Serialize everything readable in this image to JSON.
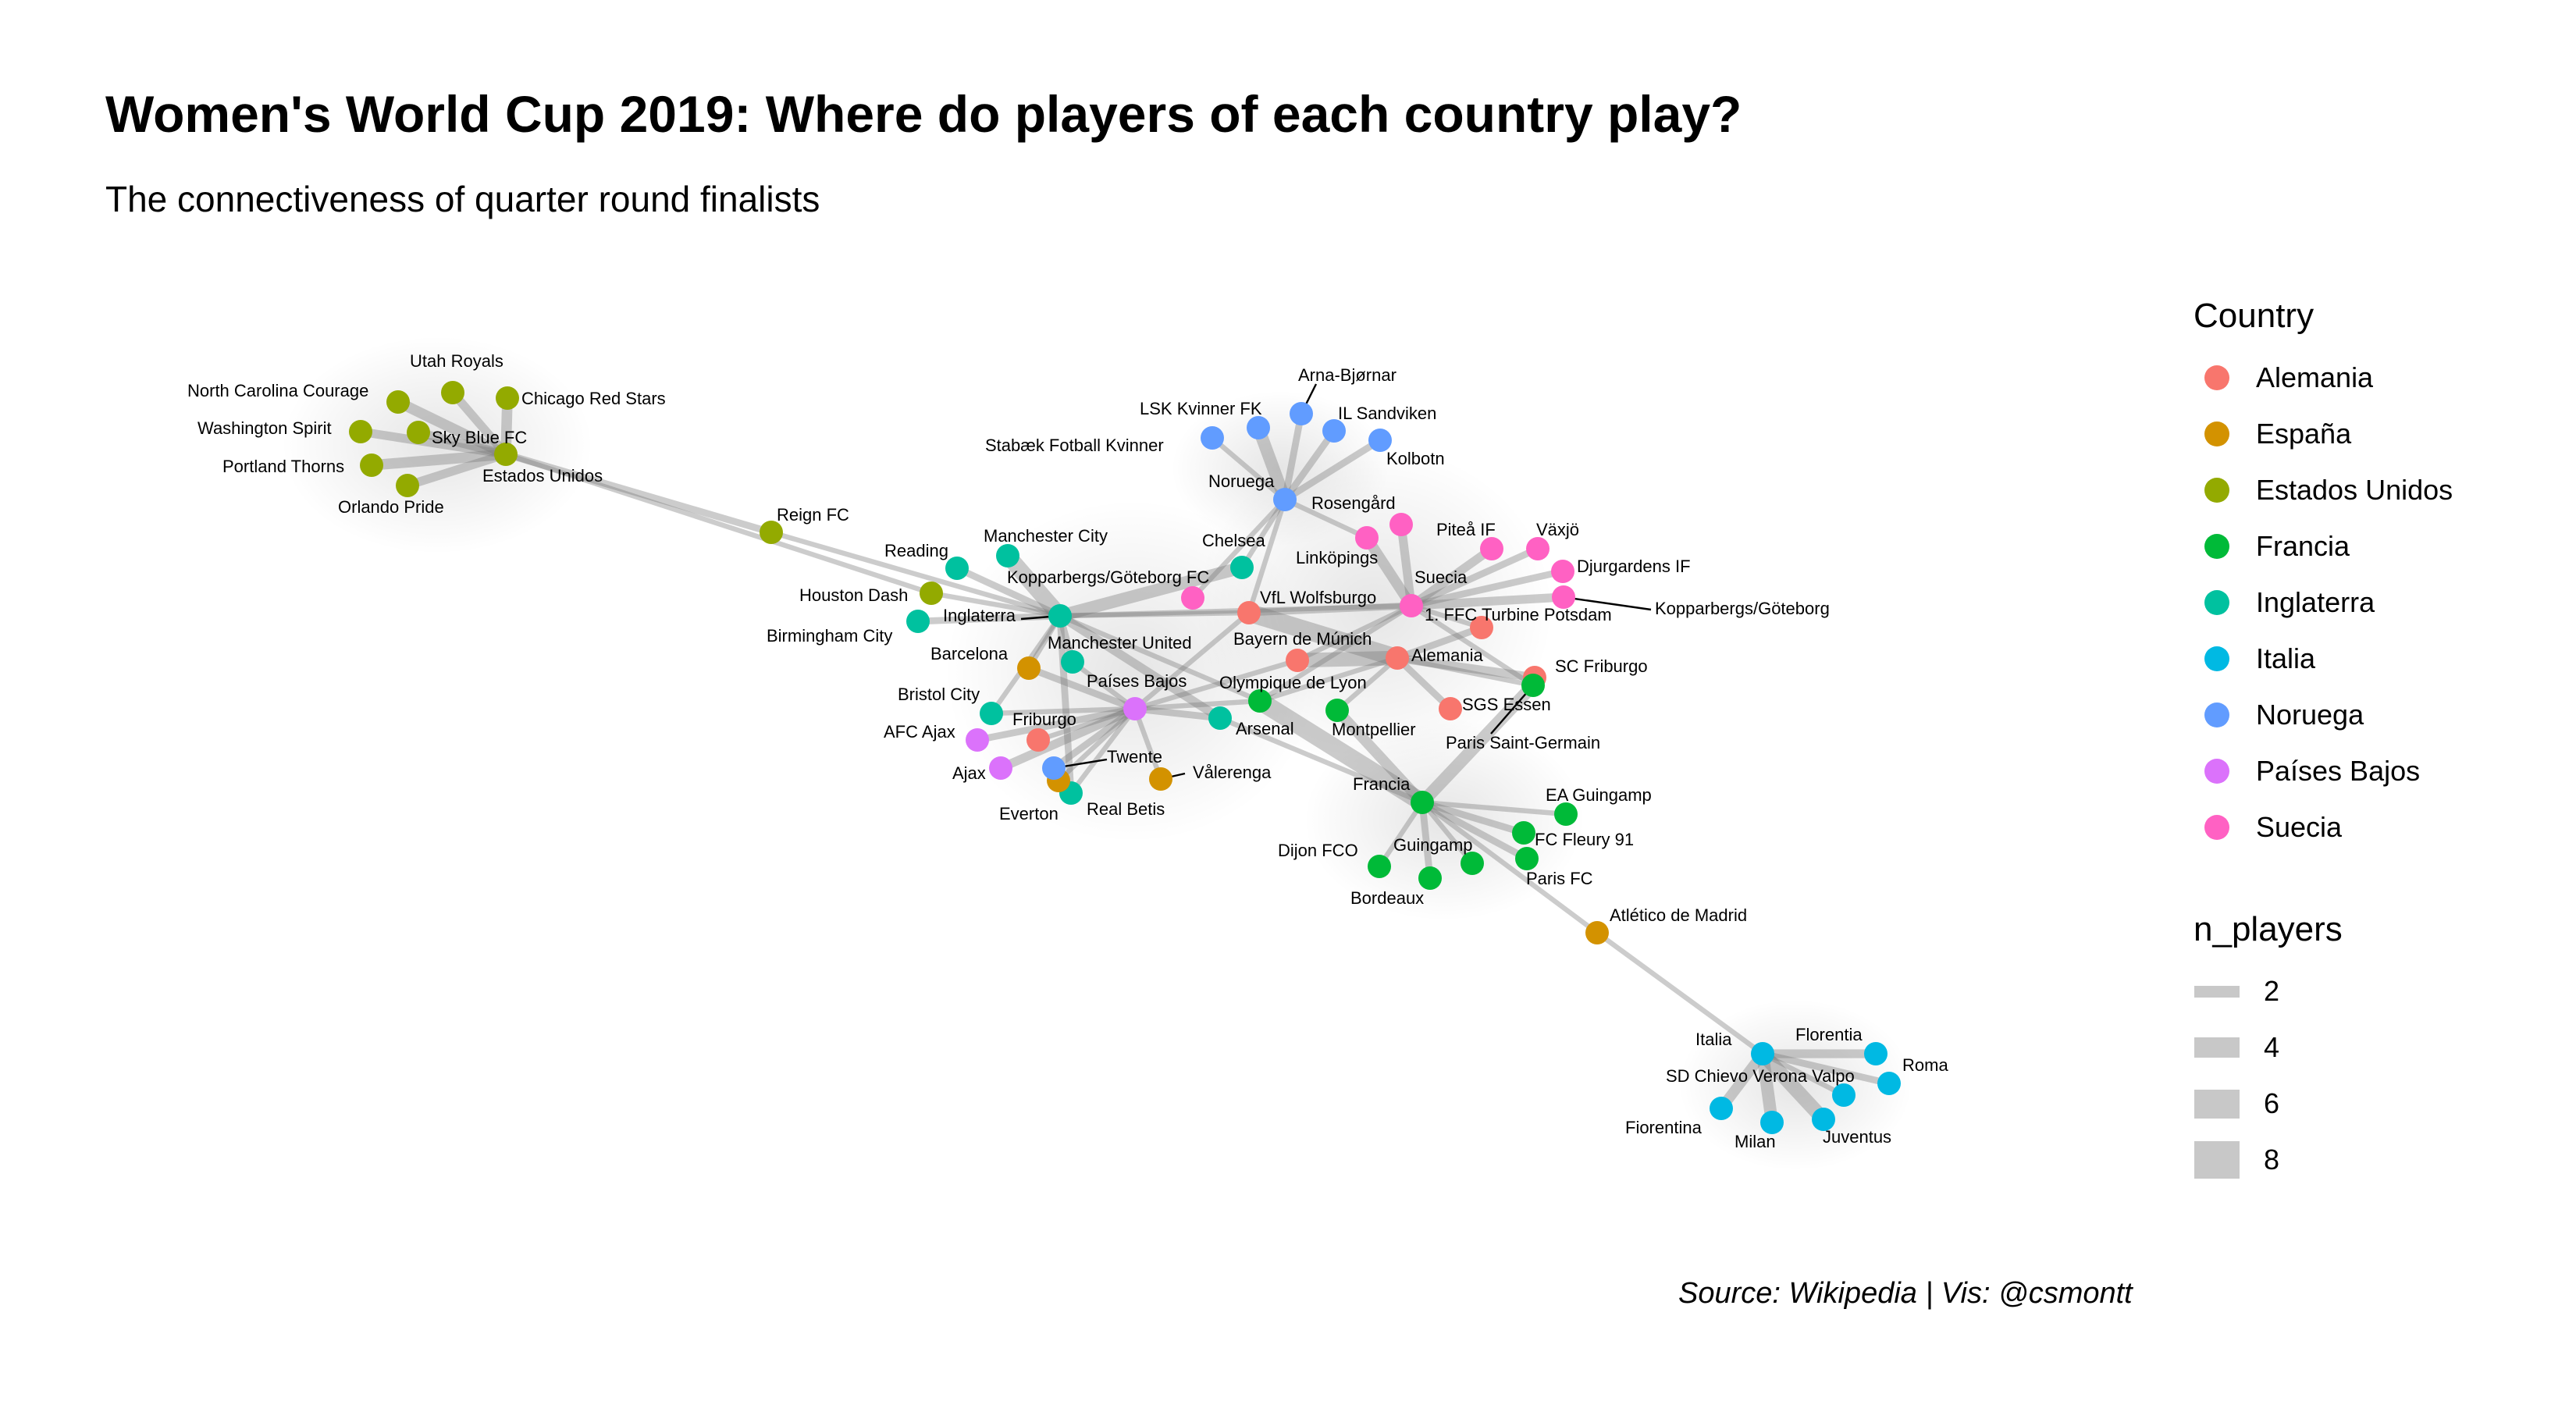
{
  "title": "Women's World Cup 2019: Where do players of each country play?",
  "subtitle": "The connectiveness of quarter round finalists",
  "caption": "Source: Wikipedia | Vis: @csmontt",
  "legend": {
    "color_title": "Country",
    "countries": [
      {
        "name": "Alemania",
        "color": "#F8766D"
      },
      {
        "name": "España",
        "color": "#D39200"
      },
      {
        "name": "Estados Unidos",
        "color": "#93AA00"
      },
      {
        "name": "Francia",
        "color": "#00BA38"
      },
      {
        "name": "Inglaterra",
        "color": "#00C19F"
      },
      {
        "name": "Italia",
        "color": "#00B9E3"
      },
      {
        "name": "Noruega",
        "color": "#619CFF"
      },
      {
        "name": "Países Bajos",
        "color": "#DB72FB"
      },
      {
        "name": "Suecia",
        "color": "#FF61C3"
      }
    ],
    "size_title": "n_players",
    "sizes": [
      {
        "label": "2",
        "value": 2
      },
      {
        "label": "4",
        "value": 4
      },
      {
        "label": "6",
        "value": 6
      },
      {
        "label": "8",
        "value": 8
      }
    ]
  },
  "graph": {
    "nodes": [
      {
        "id": "estados_unidos",
        "label": "Estados Unidos",
        "country": "Estados Unidos"
      },
      {
        "id": "utah_royals",
        "label": "Utah Royals",
        "country": "Estados Unidos"
      },
      {
        "id": "north_carolina_courage",
        "label": "North Carolina Courage",
        "country": "Estados Unidos"
      },
      {
        "id": "chicago_red_stars",
        "label": "Chicago Red Stars",
        "country": "Estados Unidos"
      },
      {
        "id": "washington_spirit",
        "label": "Washington Spirit",
        "country": "Estados Unidos"
      },
      {
        "id": "sky_blue_fc",
        "label": "Sky Blue FC",
        "country": "Estados Unidos"
      },
      {
        "id": "portland_thorns",
        "label": "Portland Thorns",
        "country": "Estados Unidos"
      },
      {
        "id": "orlando_pride",
        "label": "Orlando Pride",
        "country": "Estados Unidos"
      },
      {
        "id": "reign_fc",
        "label": "Reign FC",
        "country": "Estados Unidos"
      },
      {
        "id": "houston_dash",
        "label": "Houston Dash",
        "country": "Estados Unidos"
      },
      {
        "id": "inglaterra",
        "label": "Inglaterra",
        "country": "Inglaterra"
      },
      {
        "id": "reading",
        "label": "Reading",
        "country": "Inglaterra"
      },
      {
        "id": "manchester_city",
        "label": "Manchester City",
        "country": "Inglaterra"
      },
      {
        "id": "birmingham_city",
        "label": "Birmingham City",
        "country": "Inglaterra"
      },
      {
        "id": "chelsea",
        "label": "Chelsea",
        "country": "Inglaterra"
      },
      {
        "id": "manchester_united",
        "label": "Manchester United",
        "country": "Inglaterra"
      },
      {
        "id": "bristol_city",
        "label": "Bristol City",
        "country": "Inglaterra"
      },
      {
        "id": "arsenal",
        "label": "Arsenal",
        "country": "Inglaterra"
      },
      {
        "id": "everton",
        "label": "Everton",
        "country": "Inglaterra"
      },
      {
        "id": "barcelona",
        "label": "Barcelona",
        "country": "España"
      },
      {
        "id": "valerenga",
        "label": "Vålerenga",
        "country": "España"
      },
      {
        "id": "real_betis",
        "label": "Real Betis",
        "country": "España"
      },
      {
        "id": "atletico_madrid",
        "label": "Atlético de Madrid",
        "country": "España"
      },
      {
        "id": "paises_bajos",
        "label": "Países Bajos",
        "country": "Países Bajos"
      },
      {
        "id": "afc_ajax",
        "label": "AFC Ajax",
        "country": "Países Bajos"
      },
      {
        "id": "ajax",
        "label": "Ajax",
        "country": "Países Bajos"
      },
      {
        "id": "twente",
        "label": "Twente",
        "country": "Noruega"
      },
      {
        "id": "friburgo",
        "label": "Friburgo",
        "country": "Alemania"
      },
      {
        "id": "noruega",
        "label": "Noruega",
        "country": "Noruega"
      },
      {
        "id": "arna_bjornar",
        "label": "Arna-Bjørnar",
        "country": "Noruega"
      },
      {
        "id": "lsk_kvinner",
        "label": "LSK Kvinner FK",
        "country": "Noruega"
      },
      {
        "id": "il_sandviken",
        "label": "IL Sandviken",
        "country": "Noruega"
      },
      {
        "id": "stabaek",
        "label": "Stabæk Fotball Kvinner",
        "country": "Noruega"
      },
      {
        "id": "kolbotn",
        "label": "Kolbotn",
        "country": "Noruega"
      },
      {
        "id": "suecia",
        "label": "Suecia",
        "country": "Suecia"
      },
      {
        "id": "rosengard",
        "label": "Rosengård",
        "country": "Suecia"
      },
      {
        "id": "linkopings",
        "label": "Linköpings",
        "country": "Suecia"
      },
      {
        "id": "pitea_if",
        "label": "Piteå IF",
        "country": "Suecia"
      },
      {
        "id": "vaxjo",
        "label": "Växjö",
        "country": "Suecia"
      },
      {
        "id": "djurgardens",
        "label": "Djurgardens IF",
        "country": "Suecia"
      },
      {
        "id": "kopparbergs_goteborg",
        "label": "Kopparbergs/Göteborg",
        "country": "Suecia"
      },
      {
        "id": "kopparbergs_goteborg_fc",
        "label": "Kopparbergs/Göteborg FC",
        "country": "Suecia"
      },
      {
        "id": "alemania",
        "label": "Alemania",
        "country": "Alemania"
      },
      {
        "id": "vfl_wolfsburg",
        "label": "VfL Wolfsburgo",
        "country": "Alemania"
      },
      {
        "id": "bayern_munich",
        "label": "Bayern de Múnich",
        "country": "Alemania"
      },
      {
        "id": "turbine_potsdam",
        "label": "1. FFC Turbine Potsdam",
        "country": "Alemania"
      },
      {
        "id": "sc_friburgo",
        "label": "SC Friburgo",
        "country": "Alemania"
      },
      {
        "id": "sgs_essen",
        "label": "SGS Essen",
        "country": "Alemania"
      },
      {
        "id": "francia",
        "label": "Francia",
        "country": "Francia"
      },
      {
        "id": "olympique_lyon",
        "label": "Olympique de Lyon",
        "country": "Francia"
      },
      {
        "id": "montpellier",
        "label": "Montpellier",
        "country": "Francia"
      },
      {
        "id": "paris_saint_germain",
        "label": "Paris Saint-Germain",
        "country": "Francia"
      },
      {
        "id": "ea_guingamp",
        "label": "EA Guingamp",
        "country": "Francia"
      },
      {
        "id": "fc_fleury",
        "label": "FC Fleury 91",
        "country": "Francia"
      },
      {
        "id": "paris_fc",
        "label": "Paris FC",
        "country": "Francia"
      },
      {
        "id": "dijon_fco",
        "label": "Dijon FCO",
        "country": "Francia"
      },
      {
        "id": "guingamp",
        "label": "Guingamp",
        "country": "Francia"
      },
      {
        "id": "bordeaux",
        "label": "Bordeaux",
        "country": "Francia"
      },
      {
        "id": "italia",
        "label": "Italia",
        "country": "Italia"
      },
      {
        "id": "florentia",
        "label": "Florentia",
        "country": "Italia"
      },
      {
        "id": "roma",
        "label": "Roma",
        "country": "Italia"
      },
      {
        "id": "sd_chievo",
        "label": "SD Chievo Verona Valpo",
        "country": "Italia"
      },
      {
        "id": "fiorentina",
        "label": "Fiorentina",
        "country": "Italia"
      },
      {
        "id": "milan",
        "label": "Milan",
        "country": "Italia"
      },
      {
        "id": "juventus",
        "label": "Juventus",
        "country": "Italia"
      }
    ],
    "edges": [
      {
        "from": "estados_unidos",
        "to": "utah_royals",
        "n_players": 3
      },
      {
        "from": "estados_unidos",
        "to": "north_carolina_courage",
        "n_players": 4
      },
      {
        "from": "estados_unidos",
        "to": "chicago_red_stars",
        "n_players": 4
      },
      {
        "from": "estados_unidos",
        "to": "washington_spirit",
        "n_players": 3
      },
      {
        "from": "estados_unidos",
        "to": "sky_blue_fc",
        "n_players": 3
      },
      {
        "from": "estados_unidos",
        "to": "portland_thorns",
        "n_players": 4
      },
      {
        "from": "estados_unidos",
        "to": "orlando_pride",
        "n_players": 3
      },
      {
        "from": "estados_unidos",
        "to": "reign_fc",
        "n_players": 2
      },
      {
        "from": "reign_fc",
        "to": "inglaterra",
        "n_players": 1
      },
      {
        "from": "estados_unidos",
        "to": "houston_dash",
        "n_players": 1
      },
      {
        "from": "inglaterra",
        "to": "houston_dash",
        "n_players": 1
      },
      {
        "from": "inglaterra",
        "to": "reading",
        "n_players": 2
      },
      {
        "from": "inglaterra",
        "to": "manchester_city",
        "n_players": 7
      },
      {
        "from": "inglaterra",
        "to": "birmingham_city",
        "n_players": 2
      },
      {
        "from": "inglaterra",
        "to": "chelsea",
        "n_players": 5
      },
      {
        "from": "inglaterra",
        "to": "manchester_united",
        "n_players": 2
      },
      {
        "from": "inglaterra",
        "to": "bristol_city",
        "n_players": 1
      },
      {
        "from": "inglaterra",
        "to": "arsenal",
        "n_players": 3
      },
      {
        "from": "inglaterra",
        "to": "everton",
        "n_players": 2
      },
      {
        "from": "inglaterra",
        "to": "barcelona",
        "n_players": 1
      },
      {
        "from": "inglaterra",
        "to": "vfl_wolfsburg",
        "n_players": 1
      },
      {
        "from": "inglaterra",
        "to": "olympique_lyon",
        "n_players": 1
      },
      {
        "from": "paises_bajos",
        "to": "afc_ajax",
        "n_players": 2
      },
      {
        "from": "paises_bajos",
        "to": "ajax",
        "n_players": 3
      },
      {
        "from": "paises_bajos",
        "to": "twente",
        "n_players": 2
      },
      {
        "from": "paises_bajos",
        "to": "friburgo",
        "n_players": 1
      },
      {
        "from": "paises_bajos",
        "to": "barcelona",
        "n_players": 2
      },
      {
        "from": "paises_bajos",
        "to": "arsenal",
        "n_players": 2
      },
      {
        "from": "paises_bajos",
        "to": "bristol_city",
        "n_players": 1
      },
      {
        "from": "paises_bajos",
        "to": "everton",
        "n_players": 1
      },
      {
        "from": "paises_bajos",
        "to": "valerenga",
        "n_players": 1
      },
      {
        "from": "paises_bajos",
        "to": "real_betis",
        "n_players": 1
      },
      {
        "from": "paises_bajos",
        "to": "olympique_lyon",
        "n_players": 1
      },
      {
        "from": "paises_bajos",
        "to": "vfl_wolfsburg",
        "n_players": 1
      },
      {
        "from": "paises_bajos",
        "to": "bayern_munich",
        "n_players": 1
      },
      {
        "from": "paises_bajos",
        "to": "manchester_united",
        "n_players": 1
      },
      {
        "from": "noruega",
        "to": "arna_bjornar",
        "n_players": 2
      },
      {
        "from": "noruega",
        "to": "lsk_kvinner",
        "n_players": 5
      },
      {
        "from": "noruega",
        "to": "il_sandviken",
        "n_players": 2
      },
      {
        "from": "noruega",
        "to": "stabaek",
        "n_players": 1
      },
      {
        "from": "noruega",
        "to": "kolbotn",
        "n_players": 2
      },
      {
        "from": "noruega",
        "to": "rosengard",
        "n_players": 1
      },
      {
        "from": "noruega",
        "to": "chelsea",
        "n_players": 1
      },
      {
        "from": "noruega",
        "to": "vfl_wolfsburg",
        "n_players": 1
      },
      {
        "from": "noruega",
        "to": "kopparbergs_goteborg_fc",
        "n_players": 1
      },
      {
        "from": "suecia",
        "to": "rosengard",
        "n_players": 4
      },
      {
        "from": "suecia",
        "to": "linkopings",
        "n_players": 3
      },
      {
        "from": "suecia",
        "to": "pitea_if",
        "n_players": 3
      },
      {
        "from": "suecia",
        "to": "vaxjo",
        "n_players": 2
      },
      {
        "from": "suecia",
        "to": "djurgardens",
        "n_players": 2
      },
      {
        "from": "suecia",
        "to": "kopparbergs_goteborg",
        "n_players": 3
      },
      {
        "from": "suecia",
        "to": "vfl_wolfsburg",
        "n_players": 2
      },
      {
        "from": "suecia",
        "to": "turbine_potsdam",
        "n_players": 1
      },
      {
        "from": "suecia",
        "to": "bayern_munich",
        "n_players": 1
      },
      {
        "from": "suecia",
        "to": "paris_saint_germain",
        "n_players": 1
      },
      {
        "from": "suecia",
        "to": "olympique_lyon",
        "n_players": 1
      },
      {
        "from": "suecia",
        "to": "inglaterra",
        "n_players": 1
      },
      {
        "from": "alemania",
        "to": "vfl_wolfsburg",
        "n_players": 8
      },
      {
        "from": "alemania",
        "to": "bayern_munich",
        "n_players": 6
      },
      {
        "from": "alemania",
        "to": "turbine_potsdam",
        "n_players": 2
      },
      {
        "from": "alemania",
        "to": "sc_friburgo",
        "n_players": 3
      },
      {
        "from": "alemania",
        "to": "sgs_essen",
        "n_players": 2
      },
      {
        "from": "alemania",
        "to": "olympique_lyon",
        "n_players": 1
      },
      {
        "from": "alemania",
        "to": "montpellier",
        "n_players": 1
      },
      {
        "from": "alemania",
        "to": "paris_saint_germain",
        "n_players": 1
      },
      {
        "from": "francia",
        "to": "olympique_lyon",
        "n_players": 8
      },
      {
        "from": "francia",
        "to": "montpellier",
        "n_players": 4
      },
      {
        "from": "francia",
        "to": "paris_saint_germain",
        "n_players": 5
      },
      {
        "from": "francia",
        "to": "ea_guingamp",
        "n_players": 1
      },
      {
        "from": "francia",
        "to": "fc_fleury",
        "n_players": 2
      },
      {
        "from": "francia",
        "to": "paris_fc",
        "n_players": 2
      },
      {
        "from": "francia",
        "to": "dijon_fco",
        "n_players": 1
      },
      {
        "from": "francia",
        "to": "guingamp",
        "n_players": 1
      },
      {
        "from": "francia",
        "to": "bordeaux",
        "n_players": 2
      },
      {
        "from": "francia",
        "to": "atletico_madrid",
        "n_players": 1
      },
      {
        "from": "francia",
        "to": "arsenal",
        "n_players": 1
      },
      {
        "from": "atletico_madrid",
        "to": "italia",
        "n_players": 1
      },
      {
        "from": "italia",
        "to": "florentia",
        "n_players": 3
      },
      {
        "from": "italia",
        "to": "roma",
        "n_players": 2
      },
      {
        "from": "italia",
        "to": "sd_chievo",
        "n_players": 1
      },
      {
        "from": "italia",
        "to": "fiorentina",
        "n_players": 4
      },
      {
        "from": "italia",
        "to": "milan",
        "n_players": 5
      },
      {
        "from": "italia",
        "to": "juventus",
        "n_players": 6
      }
    ]
  }
}
